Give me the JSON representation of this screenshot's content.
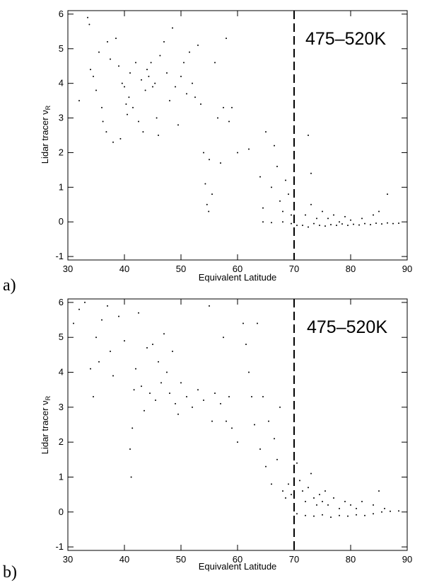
{
  "chart_data": [
    {
      "type": "scatter",
      "panel_letter": "a)",
      "xlabel": "Equivalent Latitude",
      "ylabel_text": "Lidar tracer ",
      "ylabel_symbol": "ν",
      "ylabel_subscript": "R",
      "xlim": [
        30,
        90
      ],
      "ylim": [
        -1.1,
        6.1
      ],
      "xticks": [
        30,
        40,
        50,
        60,
        70,
        80,
        90
      ],
      "yticks": [
        -1,
        0,
        1,
        2,
        3,
        4,
        5,
        6
      ],
      "vline_x": 70,
      "annotation": "475–520K",
      "grid": false,
      "series": [
        {
          "points": [
            [
              32,
              3.5
            ],
            [
              33.5,
              5.9
            ],
            [
              33.8,
              5.7
            ],
            [
              34,
              4.4
            ],
            [
              34.5,
              4.2
            ],
            [
              35,
              3.8
            ],
            [
              35.5,
              4.9
            ],
            [
              36,
              3.3
            ],
            [
              36.2,
              2.9
            ],
            [
              36.8,
              2.6
            ],
            [
              37,
              5.2
            ],
            [
              37.5,
              4.7
            ],
            [
              38,
              2.3
            ],
            [
              38.5,
              5.3
            ],
            [
              39,
              4.5
            ],
            [
              39.3,
              2.4
            ],
            [
              39.6,
              4.0
            ],
            [
              40,
              3.9
            ],
            [
              40.3,
              3.4
            ],
            [
              40.5,
              3.1
            ],
            [
              40.8,
              3.6
            ],
            [
              41,
              4.3
            ],
            [
              41.5,
              3.3
            ],
            [
              42,
              4.6
            ],
            [
              42.5,
              2.9
            ],
            [
              43,
              4.1
            ],
            [
              43.3,
              2.6
            ],
            [
              43.7,
              3.8
            ],
            [
              44,
              4.4
            ],
            [
              44.3,
              4.2
            ],
            [
              44.7,
              4.6
            ],
            [
              45,
              3.9
            ],
            [
              45.4,
              4.0
            ],
            [
              45.7,
              3.0
            ],
            [
              46,
              2.5
            ],
            [
              46.3,
              4.8
            ],
            [
              47,
              5.2
            ],
            [
              47.5,
              4.3
            ],
            [
              48,
              3.5
            ],
            [
              48.5,
              5.6
            ],
            [
              49,
              3.9
            ],
            [
              49.5,
              2.8
            ],
            [
              50,
              4.2
            ],
            [
              50.5,
              4.6
            ],
            [
              51,
              3.7
            ],
            [
              51.5,
              4.9
            ],
            [
              52,
              4.0
            ],
            [
              52.5,
              3.6
            ],
            [
              53,
              5.1
            ],
            [
              53.5,
              3.4
            ],
            [
              54,
              2.0
            ],
            [
              54.3,
              1.1
            ],
            [
              54.6,
              0.5
            ],
            [
              54.9,
              0.3
            ],
            [
              55,
              1.8
            ],
            [
              55.5,
              0.8
            ],
            [
              56,
              4.6
            ],
            [
              56.5,
              3.0
            ],
            [
              57,
              1.7
            ],
            [
              57.5,
              3.3
            ],
            [
              58,
              5.3
            ],
            [
              58.5,
              2.9
            ],
            [
              59,
              3.3
            ],
            [
              60,
              2.0
            ],
            [
              62,
              2.1
            ],
            [
              64,
              1.3
            ],
            [
              64.5,
              0.4
            ],
            [
              65,
              2.6
            ],
            [
              66,
              1.0
            ],
            [
              66.5,
              2.2
            ],
            [
              67,
              1.6
            ],
            [
              67.5,
              0.6
            ],
            [
              68,
              0.3
            ],
            [
              68.5,
              1.2
            ],
            [
              69,
              0.8
            ],
            [
              69.5,
              0.2
            ],
            [
              64.5,
              0.0
            ],
            [
              66,
              -0.02
            ],
            [
              68,
              0.0
            ],
            [
              69.5,
              -0.05
            ],
            [
              70.5,
              -0.1
            ],
            [
              71.5,
              -0.1
            ],
            [
              72.5,
              -0.15
            ],
            [
              73.5,
              -0.05
            ],
            [
              74.5,
              -0.1
            ],
            [
              75.5,
              -0.12
            ],
            [
              76.5,
              -0.08
            ],
            [
              77.5,
              -0.1
            ],
            [
              78.5,
              -0.06
            ],
            [
              79.5,
              -0.1
            ],
            [
              80.5,
              -0.07
            ],
            [
              81.5,
              -0.09
            ],
            [
              82.5,
              -0.05
            ],
            [
              83.5,
              -0.08
            ],
            [
              84.5,
              -0.04
            ],
            [
              85.5,
              -0.06
            ],
            [
              86.5,
              -0.03
            ],
            [
              87.5,
              -0.05
            ],
            [
              88.5,
              -0.04
            ],
            [
              72,
              0.2
            ],
            [
              73,
              0.5
            ],
            [
              74,
              0.1
            ],
            [
              75,
              0.3
            ],
            [
              76,
              0.1
            ],
            [
              77,
              0.2
            ],
            [
              78,
              0.0
            ],
            [
              79,
              0.15
            ],
            [
              80,
              0.05
            ],
            [
              82,
              0.1
            ],
            [
              84,
              0.2
            ],
            [
              85,
              0.3
            ],
            [
              86.5,
              0.8
            ],
            [
              73,
              1.4
            ],
            [
              72.5,
              2.5
            ]
          ]
        }
      ]
    },
    {
      "type": "scatter",
      "panel_letter": "b)",
      "xlabel": "Equivalent Latitude",
      "ylabel_text": "Lidar tracer ",
      "ylabel_symbol": "ν",
      "ylabel_subscript": "R",
      "xlim": [
        30,
        90
      ],
      "ylim": [
        -1.1,
        6.1
      ],
      "xticks": [
        30,
        40,
        50,
        60,
        70,
        80,
        90
      ],
      "yticks": [
        -1,
        0,
        1,
        2,
        3,
        4,
        5,
        6
      ],
      "vline_x": 70,
      "annotation": "475–520K",
      "grid": false,
      "series": [
        {
          "points": [
            [
              31,
              5.4
            ],
            [
              32,
              5.8
            ],
            [
              33,
              6.0
            ],
            [
              34,
              4.1
            ],
            [
              34.5,
              3.3
            ],
            [
              35,
              5.0
            ],
            [
              35.5,
              4.3
            ],
            [
              36,
              5.5
            ],
            [
              37,
              5.9
            ],
            [
              37.5,
              4.6
            ],
            [
              38,
              3.9
            ],
            [
              39,
              5.6
            ],
            [
              40,
              4.9
            ],
            [
              41,
              1.8
            ],
            [
              41.2,
              1.0
            ],
            [
              41.4,
              2.4
            ],
            [
              41.7,
              3.5
            ],
            [
              42,
              4.1
            ],
            [
              42.5,
              5.7
            ],
            [
              43,
              3.6
            ],
            [
              43.5,
              2.9
            ],
            [
              44,
              4.7
            ],
            [
              44.5,
              3.4
            ],
            [
              45,
              4.8
            ],
            [
              45.5,
              3.2
            ],
            [
              46,
              4.3
            ],
            [
              46.5,
              3.7
            ],
            [
              47,
              5.1
            ],
            [
              47.5,
              4.0
            ],
            [
              48,
              3.4
            ],
            [
              48.5,
              4.6
            ],
            [
              49,
              3.1
            ],
            [
              49.5,
              2.8
            ],
            [
              50,
              3.7
            ],
            [
              51,
              3.3
            ],
            [
              52,
              3.0
            ],
            [
              53,
              3.5
            ],
            [
              54,
              3.2
            ],
            [
              55,
              5.9
            ],
            [
              55.5,
              2.6
            ],
            [
              56,
              3.4
            ],
            [
              57,
              3.1
            ],
            [
              57.5,
              5.0
            ],
            [
              58,
              2.6
            ],
            [
              58.5,
              3.3
            ],
            [
              59,
              2.4
            ],
            [
              60,
              2.0
            ],
            [
              61,
              5.4
            ],
            [
              61.5,
              4.8
            ],
            [
              62,
              4.0
            ],
            [
              62.5,
              3.3
            ],
            [
              63,
              2.5
            ],
            [
              63.5,
              5.4
            ],
            [
              64,
              1.8
            ],
            [
              64.5,
              3.3
            ],
            [
              65,
              1.3
            ],
            [
              65.5,
              2.6
            ],
            [
              66,
              0.8
            ],
            [
              66.5,
              2.1
            ],
            [
              67,
              1.5
            ],
            [
              67.5,
              3.0
            ],
            [
              68,
              0.6
            ],
            [
              68.5,
              0.4
            ],
            [
              69,
              0.8
            ],
            [
              69.5,
              0.5
            ],
            [
              70.5,
              1.4
            ],
            [
              71,
              0.9
            ],
            [
              71.5,
              0.6
            ],
            [
              72,
              0.3
            ],
            [
              72.5,
              0.7
            ],
            [
              73,
              1.1
            ],
            [
              73.5,
              0.4
            ],
            [
              74,
              0.2
            ],
            [
              74.5,
              0.5
            ],
            [
              75,
              0.3
            ],
            [
              75.5,
              0.6
            ],
            [
              76,
              0.2
            ],
            [
              77,
              0.4
            ],
            [
              78,
              0.1
            ],
            [
              79,
              0.3
            ],
            [
              80,
              0.2
            ],
            [
              81,
              0.1
            ],
            [
              82,
              0.3
            ],
            [
              84,
              0.2
            ],
            [
              85,
              0.6
            ],
            [
              86,
              0.1
            ],
            [
              70.5,
              -0.05
            ],
            [
              72,
              -0.1
            ],
            [
              73.5,
              -0.12
            ],
            [
              75,
              -0.08
            ],
            [
              76.5,
              -0.15
            ],
            [
              78,
              -0.1
            ],
            [
              79.5,
              -0.12
            ],
            [
              81,
              -0.08
            ],
            [
              82.5,
              -0.1
            ],
            [
              84,
              -0.05
            ],
            [
              85.5,
              0.0
            ],
            [
              87,
              0.02
            ],
            [
              88.5,
              0.03
            ]
          ]
        }
      ]
    }
  ]
}
